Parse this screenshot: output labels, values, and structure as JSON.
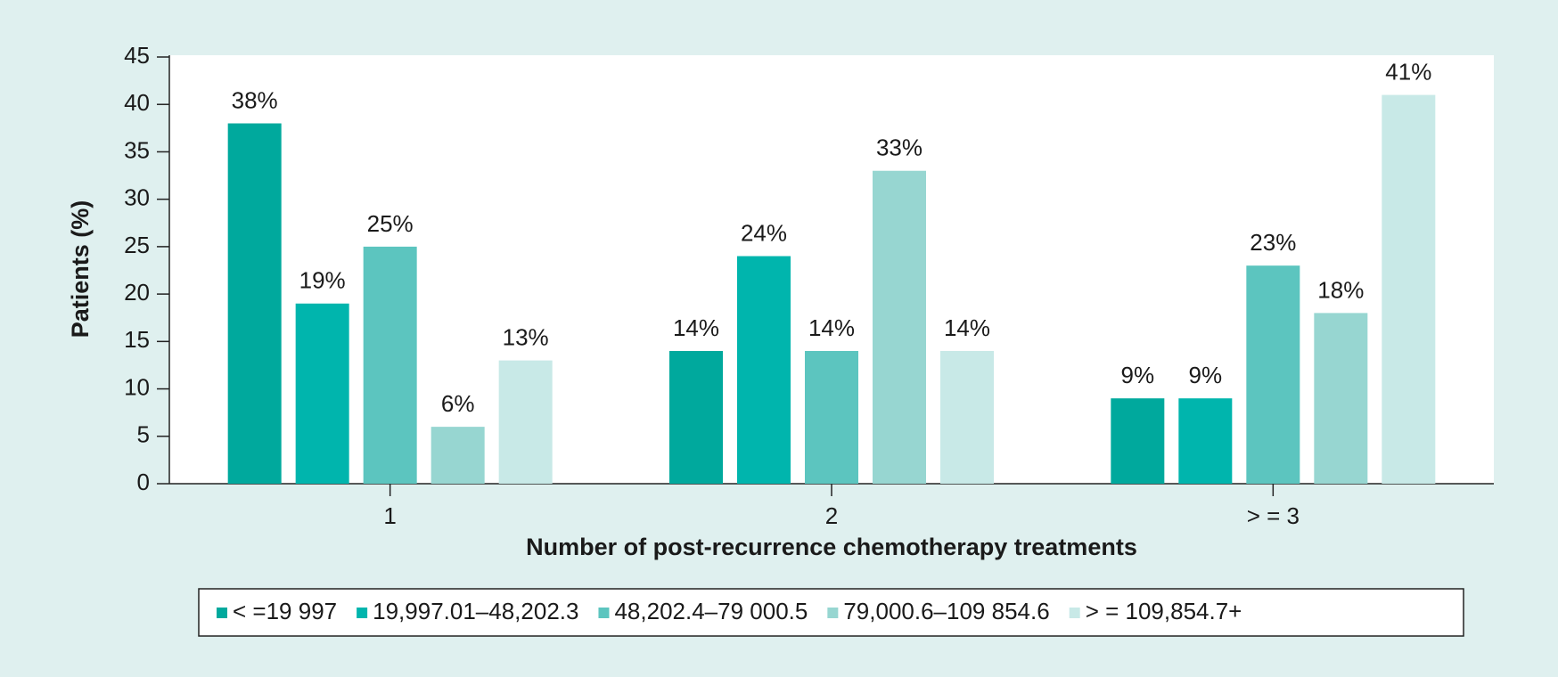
{
  "chart_data": {
    "type": "bar",
    "x_label": "Number of post-recurrence chemotherapy treatments",
    "y_label": "Patients (%)",
    "categories": [
      "1",
      "2",
      "> = 3"
    ],
    "series": [
      {
        "name": "< =19 997",
        "color": "#00a99d",
        "values": [
          38,
          14,
          9
        ],
        "value_labels": [
          "38%",
          "14%",
          "9%"
        ]
      },
      {
        "name": "19,997.01–48,202.3",
        "color": "#00b5ad",
        "values": [
          19,
          24,
          9
        ],
        "value_labels": [
          "19%",
          "24%",
          "9%"
        ]
      },
      {
        "name": "48,202.4–79 000.5",
        "color": "#5cc5bf",
        "values": [
          25,
          14,
          23
        ],
        "value_labels": [
          "25%",
          "14%",
          "23%"
        ]
      },
      {
        "name": "79,000.6–109 854.6",
        "color": "#97d6d1",
        "values": [
          6,
          33,
          18
        ],
        "value_labels": [
          "6%",
          "33%",
          "18%"
        ]
      },
      {
        "name": "> = 109,854.7+",
        "color": "#c8e9e7",
        "values": [
          13,
          14,
          41
        ],
        "value_labels": [
          "13%",
          "14%",
          "41%"
        ]
      }
    ],
    "ylim": [
      0,
      45
    ],
    "yticks": [
      0,
      5,
      10,
      15,
      20,
      25,
      30,
      35,
      40,
      45
    ]
  }
}
